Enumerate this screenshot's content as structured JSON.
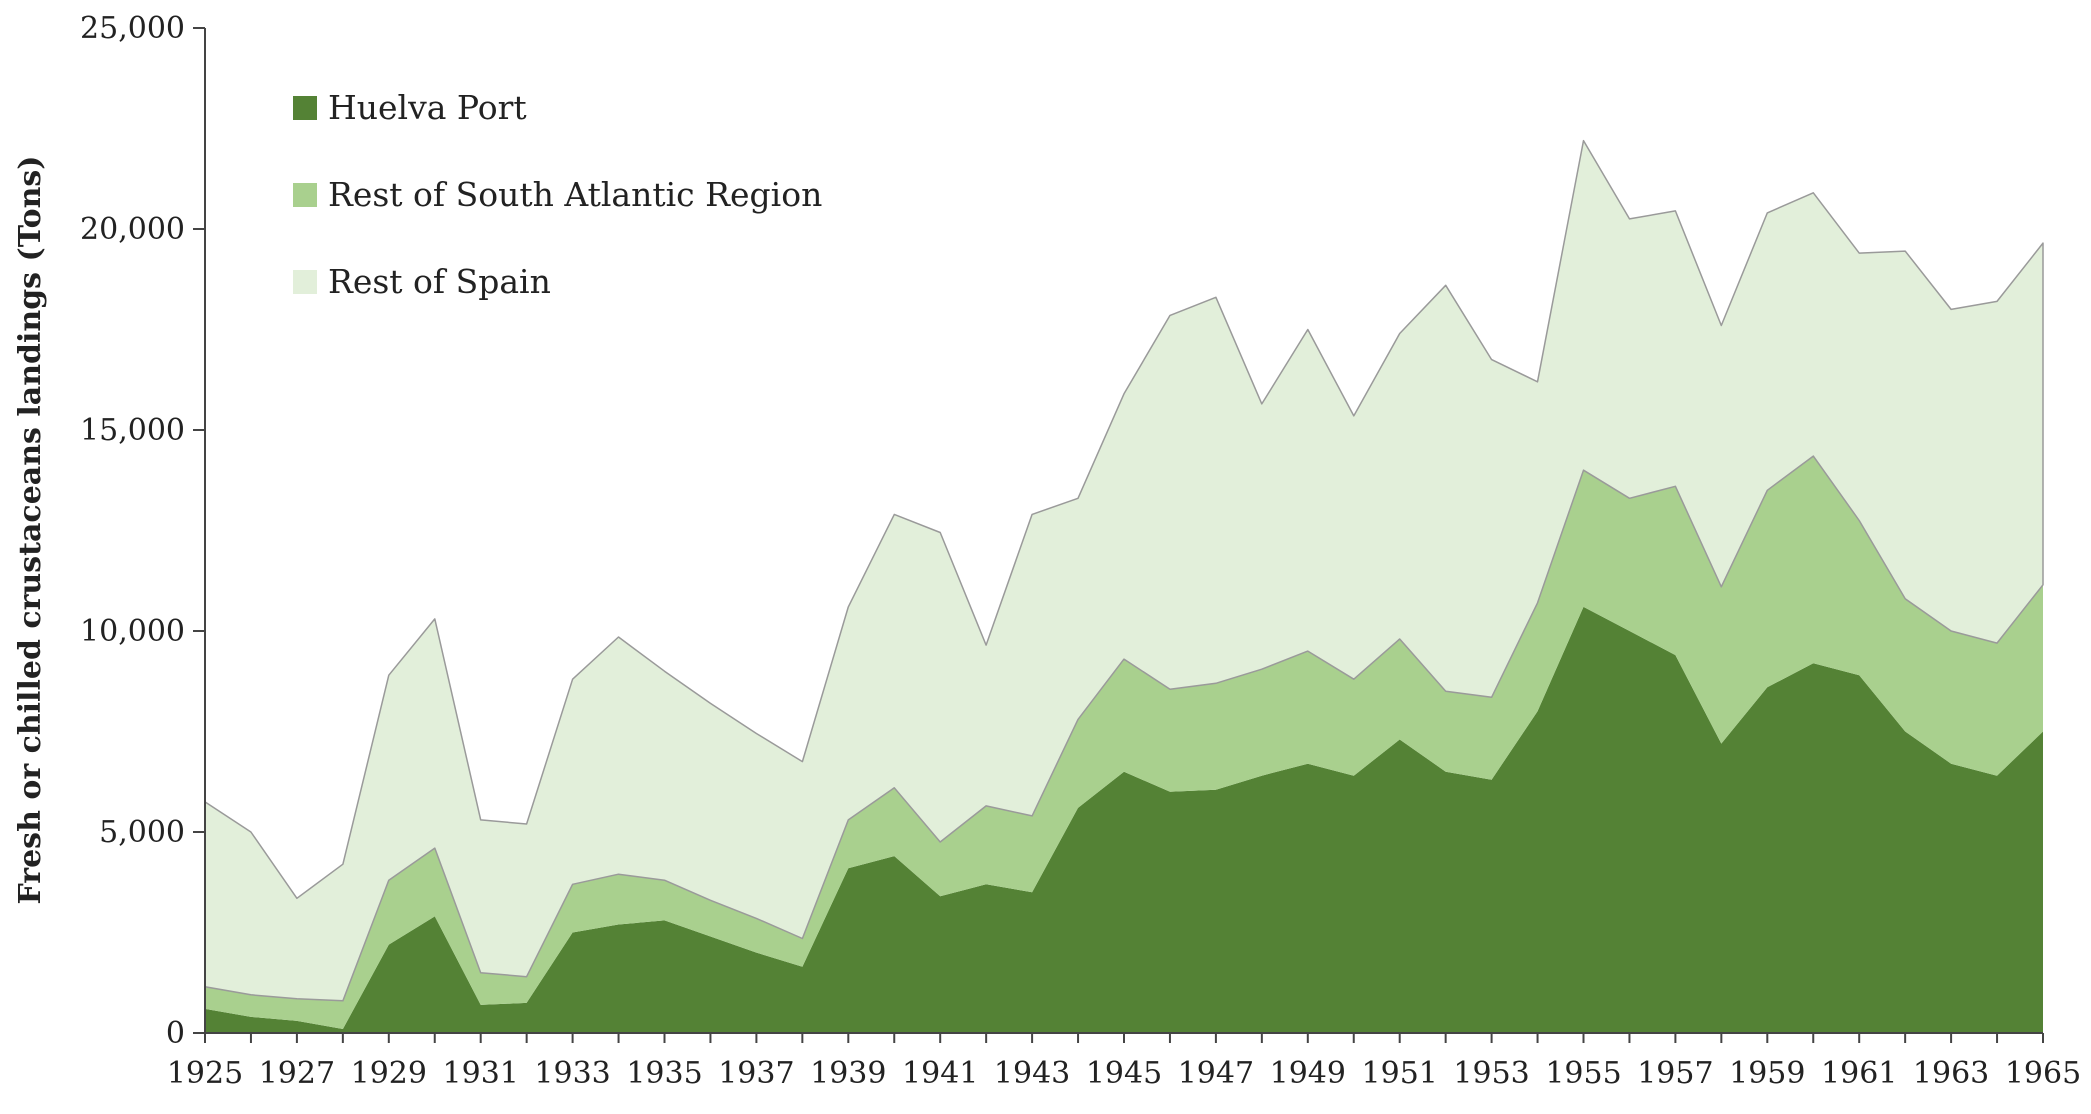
{
  "chart_data": {
    "type": "area",
    "stacked": true,
    "title": "",
    "xlabel": "",
    "ylabel": "Fresh or chilled crustaceans landings (Tons)",
    "ylim": [
      0,
      25000
    ],
    "xlim": [
      1925,
      1965
    ],
    "yticks": [
      0,
      5000,
      10000,
      15000,
      20000,
      25000
    ],
    "ytick_labels": [
      "0",
      "5,000",
      "10,000",
      "15,000",
      "20,000",
      "25,000"
    ],
    "xticks": [
      1925,
      1927,
      1929,
      1931,
      1933,
      1935,
      1937,
      1939,
      1941,
      1943,
      1945,
      1947,
      1949,
      1951,
      1953,
      1955,
      1957,
      1959,
      1961,
      1963,
      1965
    ],
    "xtick_labels": [
      "1925",
      "1927",
      "1929",
      "1931",
      "1933",
      "1935",
      "1937",
      "1939",
      "1941",
      "1943",
      "1945",
      "1947",
      "1949",
      "1951",
      "1953",
      "1955",
      "1957",
      "1959",
      "1961",
      "1963",
      "1965"
    ],
    "grid": false,
    "legend_position": "top-left",
    "x": [
      1925,
      1926,
      1927,
      1928,
      1929,
      1930,
      1931,
      1932,
      1933,
      1934,
      1935,
      1936,
      1937,
      1938,
      1939,
      1940,
      1941,
      1942,
      1943,
      1944,
      1945,
      1946,
      1947,
      1948,
      1949,
      1950,
      1951,
      1952,
      1953,
      1954,
      1955,
      1956,
      1957,
      1958,
      1959,
      1960,
      1961,
      1962,
      1963,
      1964,
      1965
    ],
    "series": [
      {
        "name": "Huelva Port",
        "color": "#548235",
        "values": [
          600,
          400,
          300,
          100,
          2200,
          2900,
          700,
          750,
          2500,
          2700,
          2800,
          2400,
          2000,
          1650,
          4100,
          4400,
          3400,
          3700,
          3500,
          5600,
          6500,
          6000,
          6050,
          6400,
          6700,
          6400,
          7300,
          6500,
          6300,
          8000,
          10600,
          10000,
          9400,
          7200,
          8600,
          9200,
          8900,
          7500,
          6700,
          6400,
          7500
        ]
      },
      {
        "name": "Rest of South Atlantic Region",
        "color": "#a9d08e",
        "values": [
          550,
          550,
          550,
          700,
          1600,
          1700,
          800,
          650,
          1200,
          1250,
          1000,
          900,
          850,
          700,
          1200,
          1700,
          1350,
          1950,
          1900,
          2200,
          2800,
          2550,
          2650,
          2650,
          2800,
          2400,
          2500,
          2000,
          2050,
          2700,
          3400,
          3300,
          4200,
          3900,
          4900,
          5150,
          3850,
          3300,
          3300,
          3300,
          3650
        ]
      },
      {
        "name": "Rest of Spain",
        "color": "#e2efda",
        "values": [
          4600,
          4050,
          2500,
          3400,
          5100,
          5700,
          3800,
          3800,
          5100,
          5900,
          5200,
          4900,
          4600,
          4400,
          5300,
          6800,
          7700,
          4000,
          7500,
          5500,
          6600,
          9300,
          9600,
          6600,
          8000,
          6550,
          7600,
          10100,
          8400,
          5500,
          8200,
          6950,
          6850,
          6500,
          6900,
          6550,
          6650,
          8650,
          8000,
          8500,
          8500
        ]
      }
    ]
  }
}
